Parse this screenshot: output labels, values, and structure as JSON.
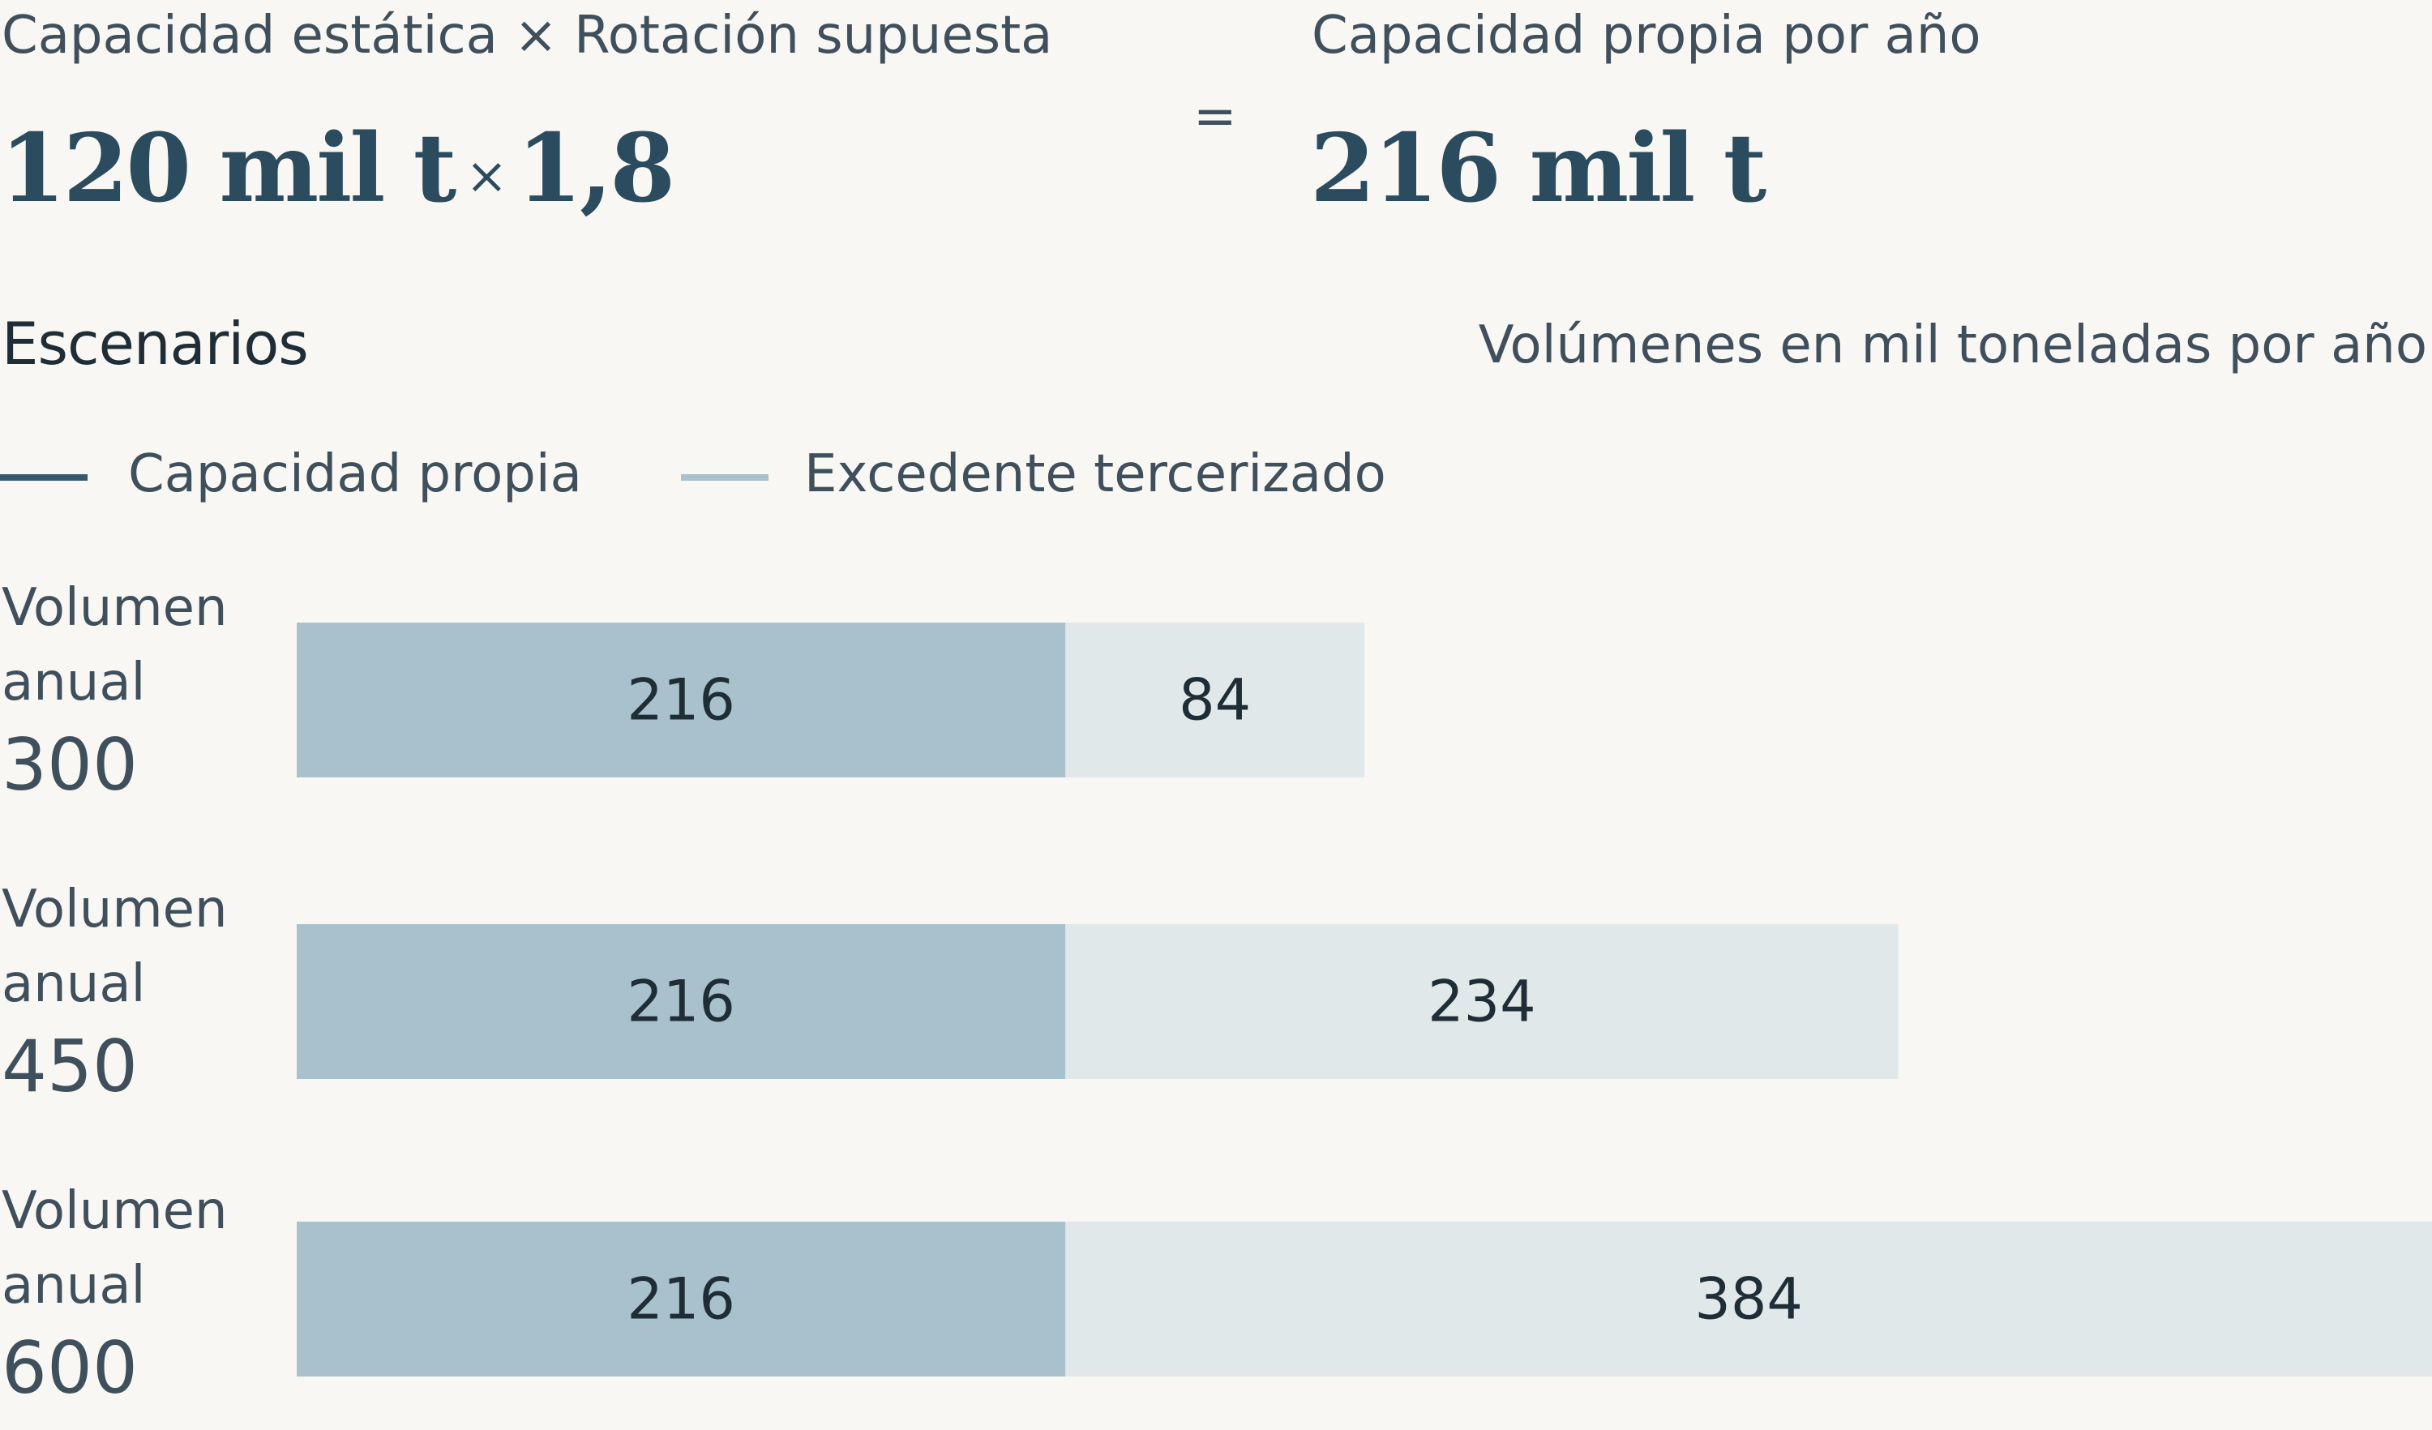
{
  "header": {
    "left_label": "Capacidad estática × Rotación supuesta",
    "left_value_static": "120 mil t",
    "left_value_times": "×",
    "left_value_rotation": "1,8",
    "equals_sign": "=",
    "right_label": "Capacidad propia por año",
    "right_value": "216 mil t"
  },
  "section": {
    "title": "Escenarios",
    "units_note": "Volúmenes en mil toneladas por año"
  },
  "chart_data": {
    "type": "bar",
    "orientation": "horizontal",
    "stacked": true,
    "categories": [
      {
        "line1": "Volumen",
        "line2": "anual",
        "value_label": "300"
      },
      {
        "line1": "Volumen",
        "line2": "anual",
        "value_label": "450"
      },
      {
        "line1": "Volumen",
        "line2": "anual",
        "value_label": "600"
      }
    ],
    "series": [
      {
        "name": "Capacidad propia",
        "values": [
          216,
          216,
          216
        ],
        "color": "#a8c1cc",
        "legend_color": "#36596e"
      },
      {
        "name": "Excedente tercerizado",
        "values": [
          84,
          234,
          384
        ],
        "color": "#e0e8ea",
        "legend_color": "#a8c1cc"
      }
    ],
    "xlim": [
      0,
      600
    ],
    "legend_position": "top-left",
    "grid": false
  }
}
